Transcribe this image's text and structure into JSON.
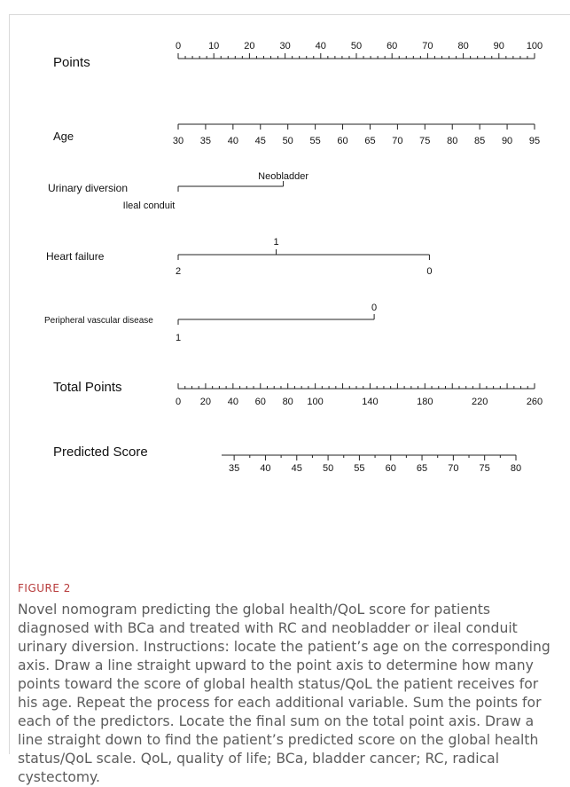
{
  "figure": {
    "label": "FIGURE 2",
    "caption": "Novel nomogram predicting the global health/QoL score for patients diagnosed with BCa and treated with RC and neobladder or ileal conduit urinary diversion. Instructions: locate the patient’s age on the corresponding axis. Draw a line straight upward to the point axis to determine how many points toward the score of global health status/QoL the patient receives for his age. Repeat the process for each additional variable. Sum the points for each of the predictors. Locate the final sum on the total point axis. Draw a line straight down to find the patient’s predicted score on the global health status/QoL scale. QoL, quality of life; BCa, bladder cancer; RC, radical cystectomy."
  },
  "chart_data": {
    "type": "nomogram",
    "title": "",
    "axes": [
      {
        "name": "Points",
        "kind": "points",
        "range": [
          0,
          100
        ],
        "tick_labels": [
          "0",
          "10",
          "20",
          "30",
          "40",
          "50",
          "60",
          "70",
          "80",
          "90",
          "100"
        ],
        "minor_step": 2
      },
      {
        "name": "Age",
        "kind": "continuous",
        "points_range": [
          0,
          100
        ],
        "tick_labels": [
          "30",
          "35",
          "40",
          "45",
          "50",
          "55",
          "60",
          "65",
          "70",
          "75",
          "80",
          "85",
          "90",
          "95"
        ]
      },
      {
        "name": "Urinary diversion",
        "kind": "categorical",
        "levels": [
          {
            "label": "Ileal conduit",
            "points": 0
          },
          {
            "label": "Neobladder",
            "points": 29.5
          }
        ]
      },
      {
        "name": "Heart failure",
        "kind": "categorical",
        "levels": [
          {
            "label": "2",
            "points": 0
          },
          {
            "label": "1",
            "points": 27.5
          },
          {
            "label": "0",
            "points": 70.5
          }
        ]
      },
      {
        "name": "Peripheral vascular disease",
        "kind": "categorical",
        "levels": [
          {
            "label": "1",
            "points": 0
          },
          {
            "label": "0",
            "points": 55
          }
        ]
      },
      {
        "name": "Total Points",
        "kind": "total",
        "range": [
          0,
          260
        ],
        "tick_labels": [
          "0",
          "20",
          "40",
          "60",
          "80",
          "100",
          "140",
          "180",
          "220",
          "260"
        ],
        "minor_step": 5
      },
      {
        "name": "Predicted Score",
        "kind": "outcome",
        "range": [
          33,
          80
        ],
        "tick_labels": [
          "35",
          "40",
          "45",
          "50",
          "55",
          "60",
          "65",
          "70",
          "75",
          "80"
        ]
      }
    ]
  }
}
